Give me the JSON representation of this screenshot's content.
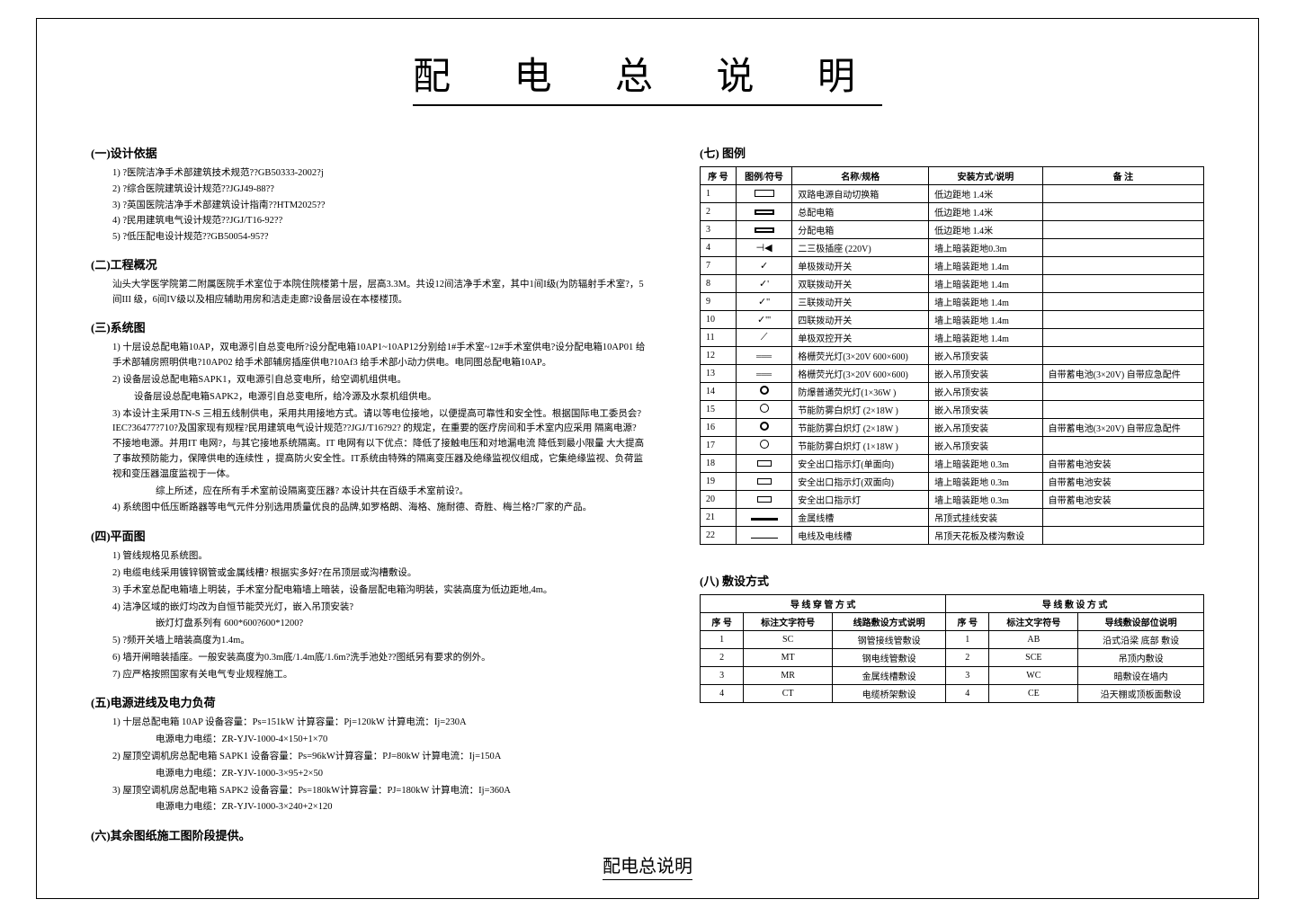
{
  "title": "配 电 总 说 明",
  "footer_title": "配电总说明",
  "sections": {
    "s1": {
      "heading": "(一)设计依据",
      "items": [
        "1)  ?医院洁净手术部建筑技术规范??GB50333-2002?j",
        "2)  ?综合医院建筑设计规范??JGJ49-88??",
        "3)  ?英国医院洁净手术部建筑设计指南??HTM2025??",
        "4)  ?民用建筑电气设计规范??JGJ/T16-92??",
        "5)  ?低压配电设计规范??GB50054-95??"
      ]
    },
    "s2": {
      "heading": "(二)工程概况",
      "para": "汕头大学医学院第二附属医院手术室位于本院住院楼第十层，层高3.3M。共设12间洁净手术室，其中1间I级(为防辐射手术室?，5间III 级，6间IV级以及相应辅助用房和洁走走廊?设备层设在本楼楼顶。"
    },
    "s3": {
      "heading": "(三)系统图",
      "items": [
        "1)   十层设总配电箱10AP，双电源引自总变电所?设分配电箱10AP1~10AP12分别给1#手术室~12#手术室供电?设分配电箱10AP01 给手术部辅房照明供电?10AP02    给手术部辅房插座供电?10Af3        给手术部小动力供电。电同图总配电箱10AP。",
        "2)   设备层设总配电箱SAPK1，双电源引自总变电所，给空调机组供电。",
        "     设备层设总配电箱SAPK2，电源引自总变电所，给冷源及水泵机组供电。",
        "3)   本设计主采用TN-S   三相五线制供电，采用共用接地方式。请以等电位接地，以便提高可靠性和安全性。根据国际电工委员会?IEC?36477?710?及国家现有规程?民用建筑电气设计规范??JGJ/T16?92? 的规定，在重要的医疗房间和手术室内应采用    隔离电源?不接地电源。并用IT 电网?，与其它接地系统隔离。IT 电网有以下优点：降低了接触电压和对地漏电流    降低到最小限量    大大提高了事故预防能力，保障供电的连续性 ，提高防火安全性。IT系统由特殊的隔离变压器及绝缘监视仪组成，它集绝缘监视、负荷监视和变压器温度监视于一体。",
        "        综上所述，应在所有手术室前设隔离变压器? 本设计共在百级手术室前设?。",
        "4)    系统图中低压断路器等电气元件分别选用质量优良的品牌,如罗格朗、海格、施耐德、奇胜、梅兰格?厂家的产品。"
      ]
    },
    "s4": {
      "heading": "(四)平面图",
      "items": [
        "1)   管线规格见系统图。",
        "2)   电缆电线采用镀锌钢管或金属线槽? 根据实多好?在吊顶层或沟槽敷设。",
        "3)   手术室总配电箱墙上明装，手术室分配电箱墙上暗装，设备层配电箱沟明装，实装高度为低边距地,4m。",
        "4)   洁净区域的嵌灯均改为自恒节能荧光灯，嵌入吊顶安装?",
        "        嵌灯灯盘系列有 600*600?600*1200?",
        "5)  ?频开关墙上暗装高度为1.4m。",
        "6)   墙开闸暗装插座。一般安装高度为0.3m底/1.4m底/1.6m?洗手池处??图纸另有要求的例外。",
        "7)   应严格按照国家有关电气专业规程施工。"
      ]
    },
    "s5": {
      "heading": "(五)电源进线及电力负荷",
      "items": [
        "1)   十层总配电箱 10AP           设备容量：Ps=151kW      计算容量：Pj=120kW        计算电流：Ij=230A",
        "        电源电力电缆：ZR-YJV-1000-4×150+1×70",
        "2)   屋顶空调机房总配电箱 SAPK1    设备容量：Ps=96kW计算容量：PJ=80kW           计算电流：Ij=150A",
        "        电源电力电缆：ZR-YJV-1000-3×95+2×50",
        "3)   屋顶空调机房总配电箱 SAPK2   设备容量：Ps=180kW计算容量：PJ=180kW         计算电流：Ij=360A",
        "        电源电力电缆：ZR-YJV-1000-3×240+2×120"
      ]
    },
    "s6": {
      "heading": "(六)其余图纸施工图阶段提供。"
    },
    "s7": {
      "heading": "(七)   图例",
      "table": {
        "headers": [
          "序 号",
          "图例/符号",
          "名称/规格",
          "安装方式/说明",
          "备    注"
        ],
        "rows": [
          [
            "1",
            "sym-box1",
            "双路电源自动切换箱",
            "低边距地 1.4米",
            ""
          ],
          [
            "2",
            "sym-box2",
            "总配电箱",
            "低边距地 1.4米",
            ""
          ],
          [
            "3",
            "sym-box2",
            "分配电箱",
            "低边距地 1.4米",
            ""
          ],
          [
            "4",
            "text:⊣◀",
            "二三极插座 (220V)",
            "墙上暗装距地0.3m",
            ""
          ],
          [
            "7",
            "text:✓",
            "单极拨动开关",
            "墙上暗装距地 1.4m",
            ""
          ],
          [
            "8",
            "text:✓'",
            "双联拨动开关",
            "墙上暗装距地 1.4m",
            ""
          ],
          [
            "9",
            "text:✓''",
            "三联拨动开关",
            "墙上暗装距地 1.4m",
            ""
          ],
          [
            "10",
            "text:✓'''",
            "四联拨动开关",
            "墙上暗装距地 1.4m",
            ""
          ],
          [
            "11",
            "text:⟋",
            "单极双控开关",
            "墙上暗装距地 1.4m",
            ""
          ],
          [
            "12",
            "sym-lines3",
            "格栅荧光灯(3×20V 600×600)",
            "嵌入吊顶安装",
            ""
          ],
          [
            "13",
            "sym-lines3",
            "格栅荧光灯(3×20V 600×600)",
            "嵌入吊顶安装",
            "自带蓄电池(3×20V) 自带应急配件"
          ],
          [
            "14",
            "sym-circle-d",
            "防爆普通荧光灯(1×36W )",
            "嵌入吊顶安装",
            ""
          ],
          [
            "15",
            "sym-circle",
            "节能防雾白炽灯 (2×18W )",
            "嵌入吊顶安装",
            ""
          ],
          [
            "16",
            "sym-circle-d",
            "节能防雾白炽灯 (2×18W )",
            "嵌入吊顶安装",
            "自带蓄电池(3×20V) 自带应急配件"
          ],
          [
            "17",
            "sym-circle",
            "节能防雾白炽灯 (1×18W )",
            "嵌入吊顶安装",
            ""
          ],
          [
            "18",
            "sym-rect",
            "安全出口指示灯(单面向)",
            "墙上暗装距地 0.3m",
            "自带蓄电池安装"
          ],
          [
            "19",
            "sym-rect",
            "安全出口指示灯(双面向)",
            "墙上暗装距地 0.3m",
            "自带蓄电池安装"
          ],
          [
            "20",
            "sym-rect-x",
            "安全出口指示灯",
            "墙上暗装距地 0.3m",
            "自带蓄电池安装"
          ],
          [
            "21",
            "sym-line-thick",
            "金属线槽",
            "吊顶式挂线安装",
            ""
          ],
          [
            "22",
            "sym-line-thin",
            "电线及电线槽",
            "吊顶天花板及楼沟敷设",
            ""
          ]
        ]
      }
    },
    "s8": {
      "heading": "(八)  敷设方式",
      "table": {
        "group_headers": [
          "导 线 穿 管 方 式",
          "导 线 敷 设 方 式"
        ],
        "headers": [
          "序 号",
          "标注文字符号",
          "线路敷设方式说明",
          "序 号",
          "标注文字符号",
          "导线敷设部位说明"
        ],
        "rows": [
          [
            "1",
            "SC",
            "钢管接线管敷设",
            "1",
            "AB",
            "沿式沿梁 底部 敷设"
          ],
          [
            "2",
            "MT",
            "钢电线管敷设",
            "2",
            "SCE",
            "吊顶内敷设"
          ],
          [
            "3",
            "MR",
            "金属线槽敷设",
            "3",
            "WC",
            "暗敷设在墙内"
          ],
          [
            "4",
            "CT",
            "电缆桥架敷设",
            "4",
            "CE",
            "沿天棚或顶板面敷设"
          ]
        ]
      }
    }
  }
}
